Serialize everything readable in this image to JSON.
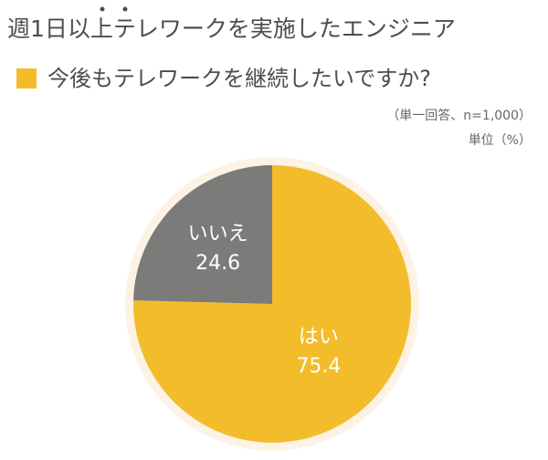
{
  "chart_data": {
    "type": "pie",
    "title": "週1日以上テレワークを実施したエンジニア",
    "subtitle": "今後もテレワークを継続したいですか?",
    "notes": [
      "（単一回答、n=1,000）",
      "単位（%）"
    ],
    "categories": [
      "はい",
      "いいえ"
    ],
    "values": [
      75.4,
      24.6
    ],
    "colors": [
      "#f3bc2b",
      "#7b7b79"
    ],
    "start": "top",
    "direction": "clockwise"
  }
}
